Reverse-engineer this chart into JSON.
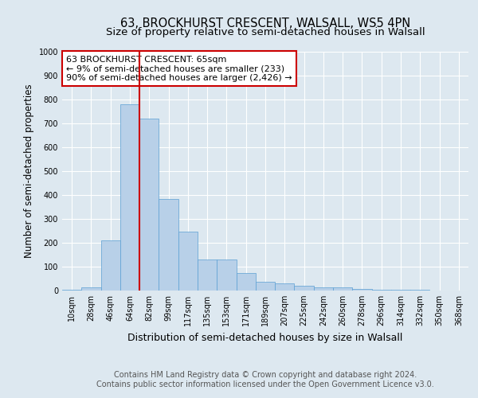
{
  "title": "63, BROCKHURST CRESCENT, WALSALL, WS5 4PN",
  "subtitle": "Size of property relative to semi-detached houses in Walsall",
  "xlabel": "Distribution of semi-detached houses by size in Walsall",
  "ylabel": "Number of semi-detached properties",
  "footer_line1": "Contains HM Land Registry data © Crown copyright and database right 2024.",
  "footer_line2": "Contains public sector information licensed under the Open Government Licence v3.0.",
  "annotation_title": "63 BROCKHURST CRESCENT: 65sqm",
  "annotation_line1": "← 9% of semi-detached houses are smaller (233)",
  "annotation_line2": "90% of semi-detached houses are larger (2,426) →",
  "bar_labels": [
    "10sqm",
    "28sqm",
    "46sqm",
    "64sqm",
    "82sqm",
    "99sqm",
    "117sqm",
    "135sqm",
    "153sqm",
    "171sqm",
    "189sqm",
    "207sqm",
    "225sqm",
    "242sqm",
    "260sqm",
    "278sqm",
    "296sqm",
    "314sqm",
    "332sqm",
    "350sqm",
    "368sqm"
  ],
  "bar_values": [
    5,
    15,
    210,
    780,
    720,
    385,
    248,
    130,
    130,
    75,
    38,
    30,
    20,
    15,
    12,
    8,
    5,
    3,
    2,
    1,
    0
  ],
  "bar_color": "#b8d0e8",
  "bar_edge_color": "#5a9fd4",
  "vline_color": "#cc0000",
  "vline_x": 3.5,
  "ylim": [
    0,
    1000
  ],
  "yticks": [
    0,
    100,
    200,
    300,
    400,
    500,
    600,
    700,
    800,
    900,
    1000
  ],
  "bg_color": "#dde8f0",
  "plot_bg_color": "#dde8f0",
  "grid_color": "#ffffff",
  "annotation_box_color": "#ffffff",
  "annotation_box_edge": "#cc0000",
  "title_fontsize": 10.5,
  "subtitle_fontsize": 9.5,
  "axis_label_fontsize": 8.5,
  "tick_fontsize": 7,
  "annotation_fontsize": 8,
  "footer_fontsize": 7
}
